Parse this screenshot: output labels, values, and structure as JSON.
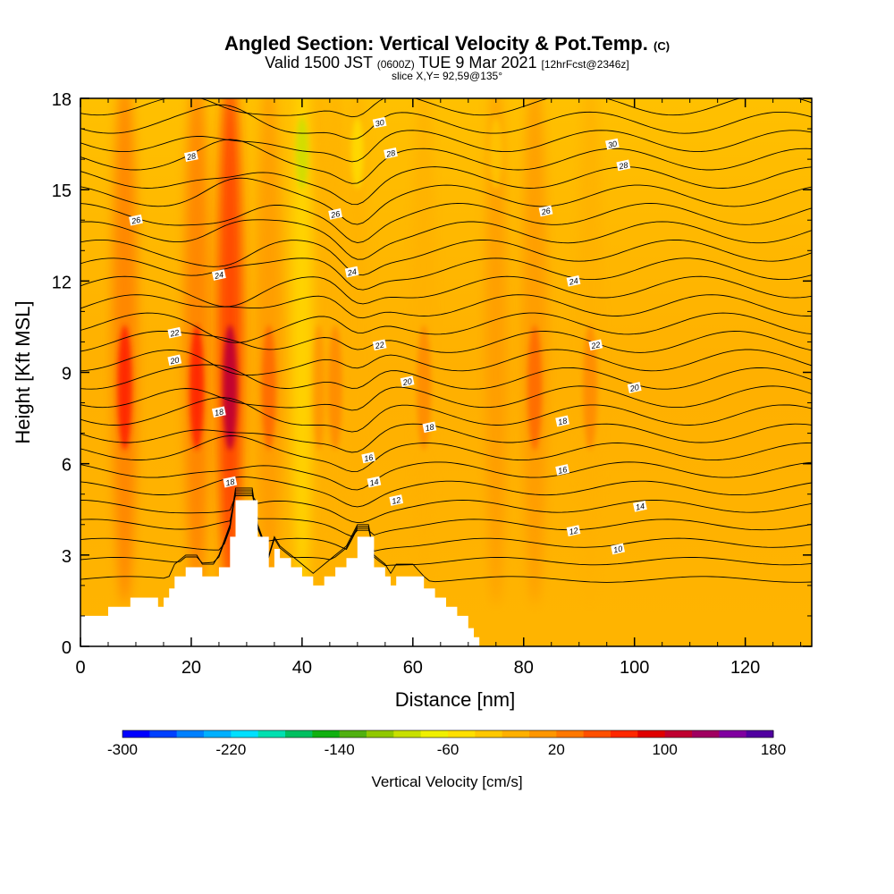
{
  "header": {
    "title": "Angled Section: Vertical Velocity & Pot.Temp.",
    "title_tag": "(C)",
    "valid_prefix": "Valid 1500 JST",
    "valid_utc": "(0600Z)",
    "valid_date": "TUE 9 Mar 2021",
    "forecast": "[12hrFcst@2346z]",
    "slice": "slice X,Y= 92,59@135°"
  },
  "chart_data": {
    "type": "heatmap",
    "xlabel": "Distance [nm]",
    "ylabel": "Height [Kft MSL]",
    "xlim": [
      0,
      132
    ],
    "ylim": [
      0,
      18
    ],
    "x_ticks": [
      0,
      20,
      40,
      60,
      80,
      100,
      120
    ],
    "y_ticks": [
      0,
      3,
      6,
      9,
      12,
      15,
      18
    ],
    "colorbar": {
      "title": "Vertical Velocity [cm/s]",
      "range": [
        -300,
        180
      ],
      "tick_labels": [
        -300,
        -220,
        -140,
        -60,
        20,
        100,
        180
      ],
      "colors": [
        "#0000ff",
        "#0040ff",
        "#0080ff",
        "#00b0ff",
        "#00e0ff",
        "#00e0b0",
        "#00c060",
        "#10b010",
        "#50b010",
        "#90c800",
        "#c8e000",
        "#f0f000",
        "#ffe000",
        "#ffc800",
        "#ffb000",
        "#ff9600",
        "#ff7800",
        "#ff5000",
        "#ff2800",
        "#e00000",
        "#c00030",
        "#a00060",
        "#8000a0",
        "#5000a0"
      ]
    },
    "isentropes_K": [
      10,
      12,
      14,
      16,
      18,
      20,
      22,
      24,
      26,
      28,
      30
    ],
    "terrain_kft": [
      [
        0,
        1.0
      ],
      [
        4,
        1.0
      ],
      [
        5,
        1.3
      ],
      [
        8,
        1.3
      ],
      [
        9,
        1.6
      ],
      [
        13,
        1.6
      ],
      [
        14,
        1.3
      ],
      [
        15,
        1.6
      ],
      [
        16,
        1.9
      ],
      [
        17,
        2.3
      ],
      [
        19,
        2.6
      ],
      [
        21,
        2.6
      ],
      [
        22,
        2.3
      ],
      [
        24,
        2.3
      ],
      [
        25,
        2.6
      ],
      [
        27,
        3.6
      ],
      [
        28,
        4.8
      ],
      [
        31,
        4.8
      ],
      [
        32,
        3.6
      ],
      [
        34,
        2.6
      ],
      [
        35,
        3.2
      ],
      [
        36,
        2.9
      ],
      [
        38,
        2.6
      ],
      [
        40,
        2.3
      ],
      [
        42,
        2.0
      ],
      [
        44,
        2.3
      ],
      [
        46,
        2.6
      ],
      [
        48,
        2.9
      ],
      [
        50,
        3.6
      ],
      [
        52,
        3.6
      ],
      [
        53,
        2.6
      ],
      [
        55,
        2.3
      ],
      [
        56,
        2.0
      ],
      [
        57,
        2.3
      ],
      [
        60,
        2.3
      ],
      [
        62,
        1.9
      ],
      [
        64,
        1.6
      ],
      [
        66,
        1.3
      ],
      [
        68,
        1.0
      ],
      [
        70,
        0.6
      ],
      [
        71,
        0.3
      ],
      [
        72,
        0.0
      ]
    ],
    "updraft_bands_nm": [
      {
        "x": 8,
        "max_cm_s": 60
      },
      {
        "x": 21,
        "max_cm_s": 60
      },
      {
        "x": 27,
        "max_cm_s": 100
      },
      {
        "x": 34,
        "max_cm_s": 40
      },
      {
        "x": 43,
        "max_cm_s": 20
      },
      {
        "x": 46,
        "max_cm_s": 20
      },
      {
        "x": 62,
        "max_cm_s": 20
      },
      {
        "x": 82,
        "max_cm_s": 40
      },
      {
        "x": 92,
        "max_cm_s": 20
      }
    ],
    "downdraft_bands_nm": [
      {
        "x": 40,
        "min_cm_s": -100
      },
      {
        "x": 50,
        "min_cm_s": -60
      },
      {
        "x": 75,
        "min_cm_s": -40
      }
    ],
    "contour_labels": [
      {
        "text": "30",
        "x": 54,
        "y": 17.2
      },
      {
        "text": "30",
        "x": 96,
        "y": 16.5
      },
      {
        "text": "28",
        "x": 20,
        "y": 16.1
      },
      {
        "text": "28",
        "x": 56,
        "y": 16.2
      },
      {
        "text": "28",
        "x": 98,
        "y": 15.8
      },
      {
        "text": "26",
        "x": 10,
        "y": 14.0
      },
      {
        "text": "26",
        "x": 46,
        "y": 14.2
      },
      {
        "text": "26",
        "x": 84,
        "y": 14.3
      },
      {
        "text": "24",
        "x": 25,
        "y": 12.2
      },
      {
        "text": "24",
        "x": 49,
        "y": 12.3
      },
      {
        "text": "24",
        "x": 89,
        "y": 12.0
      },
      {
        "text": "22",
        "x": 17,
        "y": 10.3
      },
      {
        "text": "22",
        "x": 54,
        "y": 9.9
      },
      {
        "text": "22",
        "x": 93,
        "y": 9.9
      },
      {
        "text": "20",
        "x": 17,
        "y": 9.4
      },
      {
        "text": "20",
        "x": 59,
        "y": 8.7
      },
      {
        "text": "20",
        "x": 100,
        "y": 8.5
      },
      {
        "text": "18",
        "x": 25,
        "y": 7.7
      },
      {
        "text": "18",
        "x": 63,
        "y": 7.2
      },
      {
        "text": "18",
        "x": 87,
        "y": 7.4
      },
      {
        "text": "16",
        "x": 52,
        "y": 6.2
      },
      {
        "text": "16",
        "x": 87,
        "y": 5.8
      },
      {
        "text": "14",
        "x": 53,
        "y": 5.4
      },
      {
        "text": "14",
        "x": 101,
        "y": 4.6
      },
      {
        "text": "12",
        "x": 57,
        "y": 4.8
      },
      {
        "text": "12",
        "x": 89,
        "y": 3.8
      },
      {
        "text": "10",
        "x": 97,
        "y": 3.2
      },
      {
        "text": "18",
        "x": 27,
        "y": 5.4
      }
    ]
  }
}
